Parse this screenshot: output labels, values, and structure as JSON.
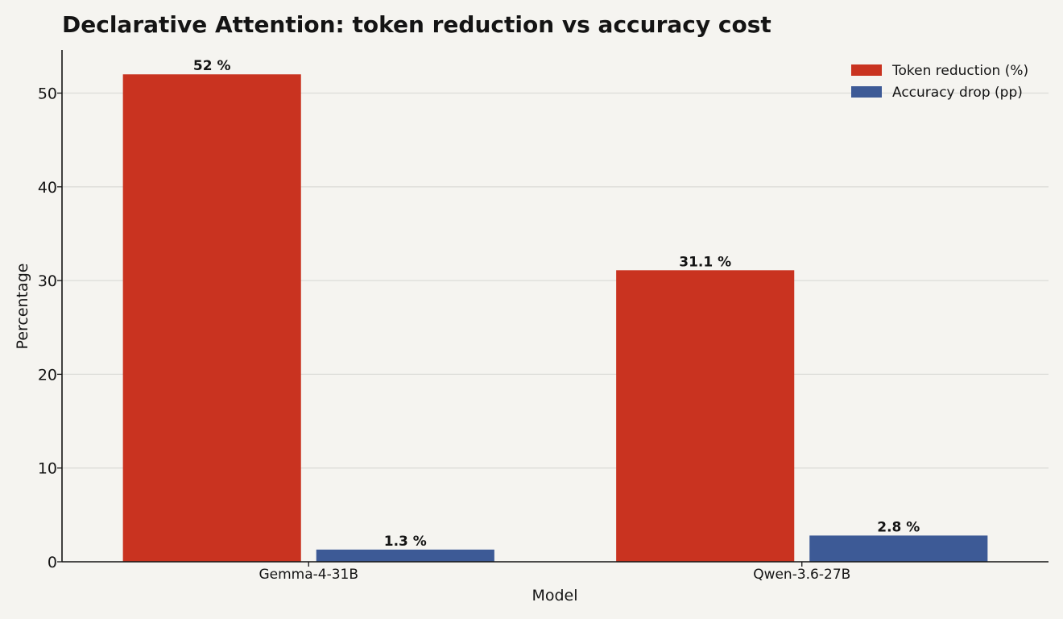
{
  "chart_data": {
    "type": "bar",
    "title": "Declarative Attention: token reduction vs accuracy cost",
    "xlabel": "Model",
    "ylabel": "Percentage",
    "categories": [
      "Gemma-4-31B",
      "Qwen-3.6-27B"
    ],
    "series": [
      {
        "name": "Token reduction (%)",
        "values": [
          52,
          31.1
        ],
        "labels": [
          "52 %",
          "31.1 %"
        ],
        "color": "#c93320"
      },
      {
        "name": "Accuracy drop (pp)",
        "values": [
          1.3,
          2.8
        ],
        "labels": [
          "1.3 %",
          "2.8 %"
        ],
        "color": "#3d5a96"
      }
    ],
    "ylim": [
      0,
      54.6
    ],
    "yticks": [
      0,
      10,
      20,
      30,
      40,
      50
    ],
    "grid": true,
    "legend_position": "top-right"
  }
}
